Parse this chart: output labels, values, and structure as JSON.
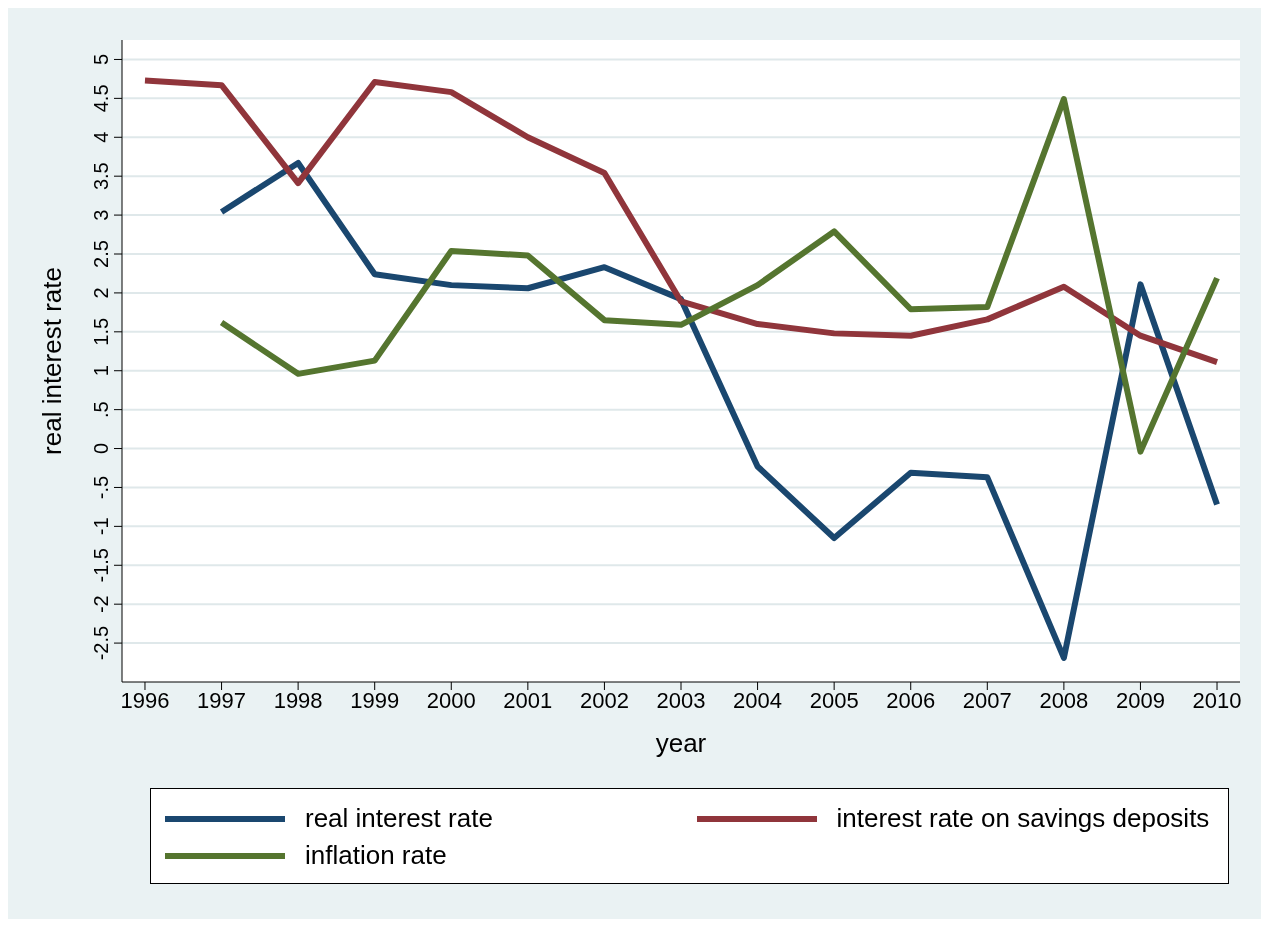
{
  "chart_data": {
    "type": "line",
    "xlabel": "year",
    "ylabel": "real interest rate",
    "x": [
      1996,
      1997,
      1998,
      1999,
      2000,
      2001,
      2002,
      2003,
      2004,
      2005,
      2006,
      2007,
      2008,
      2009,
      2010
    ],
    "series": [
      {
        "name": "real interest rate",
        "color": "#1a476f",
        "values": [
          null,
          3.04,
          3.67,
          2.24,
          2.1,
          2.06,
          2.33,
          1.92,
          -0.23,
          -1.15,
          -0.31,
          -0.37,
          -2.69,
          2.11,
          -0.72
        ]
      },
      {
        "name": "interest rate on savings deposits",
        "color": "#90353b",
        "values": [
          4.73,
          4.67,
          3.41,
          4.71,
          4.58,
          4.0,
          3.54,
          1.89,
          1.6,
          1.48,
          1.45,
          1.66,
          2.08,
          1.45,
          1.11
        ]
      },
      {
        "name": "inflation rate",
        "color": "#55752f",
        "values": [
          null,
          1.62,
          0.96,
          1.13,
          2.54,
          2.48,
          1.65,
          1.59,
          2.1,
          2.79,
          1.79,
          1.82,
          4.49,
          -0.04,
          2.19
        ]
      }
    ],
    "xlim": [
      1995.7,
      2010.3
    ],
    "xticks": [
      1996,
      1997,
      1998,
      1999,
      2000,
      2001,
      2002,
      2003,
      2004,
      2005,
      2006,
      2007,
      2008,
      2009,
      2010
    ],
    "ylim": [
      -3,
      5.25
    ],
    "yticks": [
      {
        "value": -2.5,
        "label": "-2.5"
      },
      {
        "value": -2,
        "label": "-2"
      },
      {
        "value": -1.5,
        "label": "-1.5"
      },
      {
        "value": -1,
        "label": "-1"
      },
      {
        "value": -0.5,
        "label": "-.5"
      },
      {
        "value": 0,
        "label": "0"
      },
      {
        "value": 0.5,
        "label": ".5"
      },
      {
        "value": 1,
        "label": "1"
      },
      {
        "value": 1.5,
        "label": "1.5"
      },
      {
        "value": 2,
        "label": "2"
      },
      {
        "value": 2.5,
        "label": "2.5"
      },
      {
        "value": 3,
        "label": "3"
      },
      {
        "value": 3.5,
        "label": "3.5"
      },
      {
        "value": 4,
        "label": "4"
      },
      {
        "value": 4.5,
        "label": "4.5"
      },
      {
        "value": 5,
        "label": "5"
      }
    ],
    "grid": "y",
    "legend": "bottom",
    "marker": "none",
    "line_style": "solid"
  }
}
